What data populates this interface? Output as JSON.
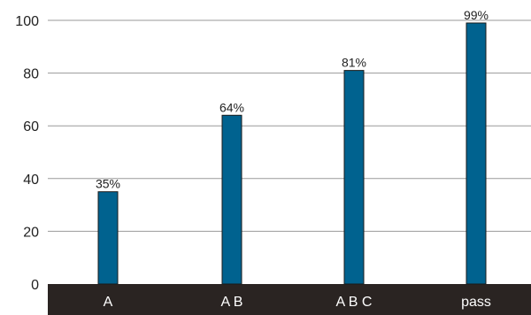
{
  "chart_data": {
    "type": "bar",
    "title": "",
    "xlabel": "",
    "ylabel": "",
    "categories": [
      "A",
      "A B",
      "A B C",
      "pass"
    ],
    "values": [
      35,
      64,
      81,
      99
    ],
    "data_labels": [
      "35%",
      "64%",
      "81%",
      "99%"
    ],
    "ylim": [
      0,
      100
    ],
    "yticks": [
      "0",
      "20",
      "40",
      "60",
      "80",
      "100"
    ],
    "grid": true,
    "legend": "none",
    "colors": {
      "bar": "#00628f",
      "bar_edge": "#1a1a1a",
      "axis_band": "#2a2422",
      "grid": "#9a9a9a"
    }
  }
}
